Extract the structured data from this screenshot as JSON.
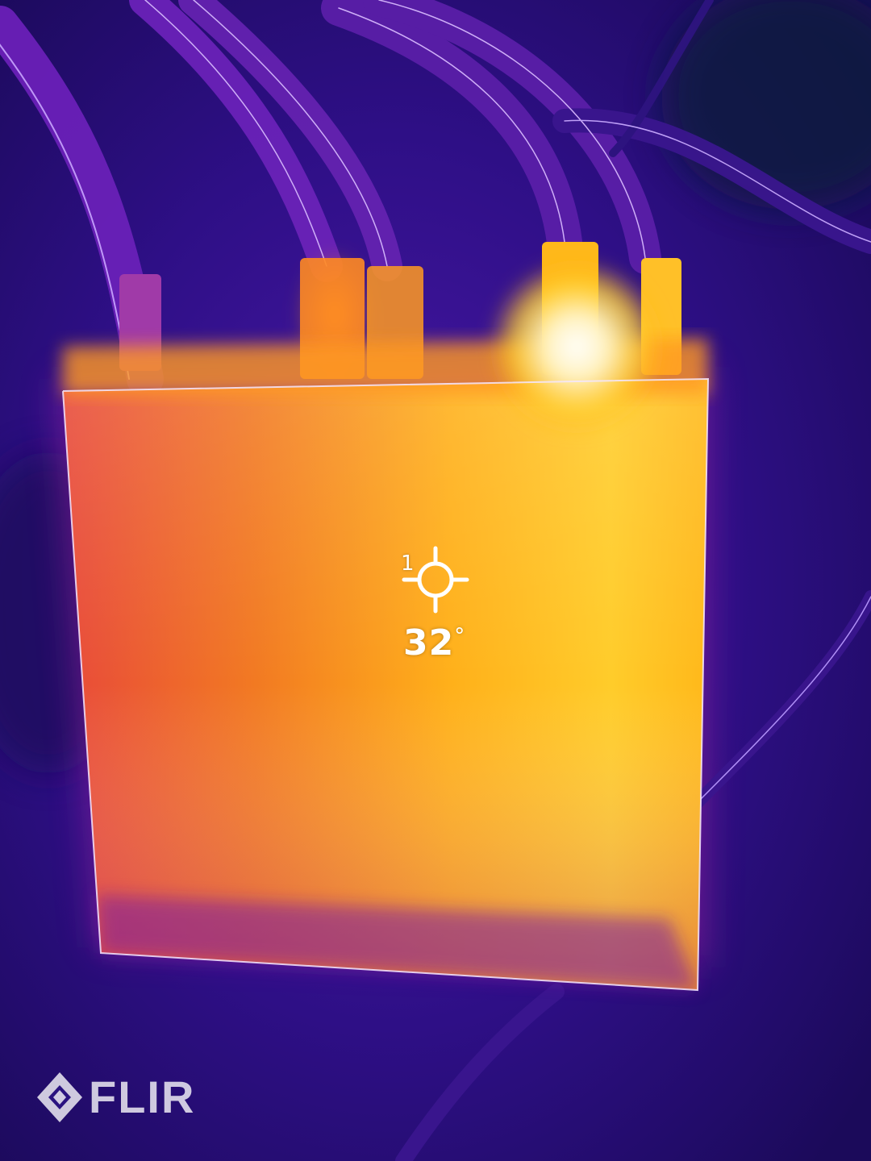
{
  "spot_meter": {
    "index": "1",
    "temperature_value": "32",
    "temperature_unit": "°"
  },
  "branding": {
    "logo_text": "FLIR"
  },
  "palette": {
    "cold": "#1a0a4a",
    "cool": "#3a1690",
    "mid": "#8a1ab0",
    "warm": "#e8502a",
    "hot": "#ffa01a",
    "hottest": "#fff6d8"
  }
}
